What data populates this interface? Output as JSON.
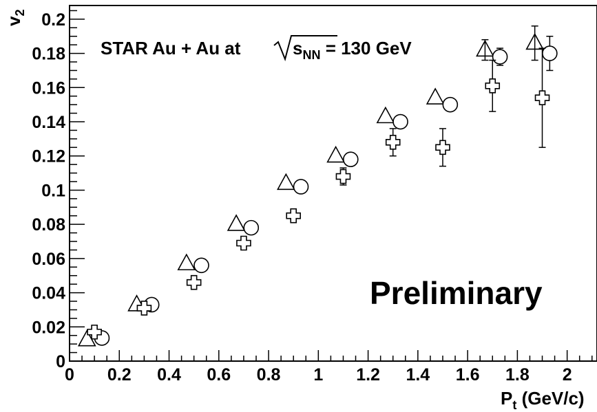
{
  "chart_data": {
    "type": "scatter",
    "title": "",
    "xlabel_main": "P",
    "xlabel_sub": "t",
    "xlabel_rest": " (GeV/c)",
    "ylabel_main": "v",
    "ylabel_sub": "2",
    "annotation_main": "STAR Au + Au at ",
    "annotation_s": "s",
    "annotation_sub": "NN",
    "annotation_rest": " = 130 GeV",
    "watermark": "Preliminary",
    "xlim": [
      0,
      2.12
    ],
    "ylim": [
      0,
      0.208
    ],
    "grid": false,
    "legend": "none",
    "x_ticks": [
      {
        "value": 0,
        "label": "0"
      },
      {
        "value": 0.2,
        "label": "0.2"
      },
      {
        "value": 0.4,
        "label": "0.4"
      },
      {
        "value": 0.6,
        "label": "0.6"
      },
      {
        "value": 0.8,
        "label": "0.8"
      },
      {
        "value": 1.0,
        "label": "1"
      },
      {
        "value": 1.2,
        "label": "1.2"
      },
      {
        "value": 1.4,
        "label": "1.4"
      },
      {
        "value": 1.6,
        "label": "1.6"
      },
      {
        "value": 1.8,
        "label": "1.8"
      },
      {
        "value": 2.0,
        "label": "2"
      }
    ],
    "y_ticks": [
      {
        "value": 0,
        "label": "0"
      },
      {
        "value": 0.02,
        "label": "0.02"
      },
      {
        "value": 0.04,
        "label": "0.04"
      },
      {
        "value": 0.06,
        "label": "0.06"
      },
      {
        "value": 0.08,
        "label": "0.08"
      },
      {
        "value": 0.1,
        "label": "0.1"
      },
      {
        "value": 0.12,
        "label": "0.12"
      },
      {
        "value": 0.14,
        "label": "0.14"
      },
      {
        "value": 0.16,
        "label": "0.16"
      },
      {
        "value": 0.18,
        "label": "0.18"
      },
      {
        "value": 0.2,
        "label": "0.2"
      }
    ],
    "series": [
      {
        "marker": "triangle",
        "points": [
          {
            "x": 0.07,
            "y": 0.0125,
            "err": 0
          },
          {
            "x": 0.27,
            "y": 0.033,
            "err": 0
          },
          {
            "x": 0.47,
            "y": 0.057,
            "err": 0
          },
          {
            "x": 0.67,
            "y": 0.08,
            "err": 0
          },
          {
            "x": 0.87,
            "y": 0.104,
            "err": 0
          },
          {
            "x": 1.07,
            "y": 0.12,
            "err": 0
          },
          {
            "x": 1.27,
            "y": 0.143,
            "err": 0
          },
          {
            "x": 1.47,
            "y": 0.154,
            "err": 0
          },
          {
            "x": 1.67,
            "y": 0.182,
            "err": 0.006
          },
          {
            "x": 1.87,
            "y": 0.186,
            "err": 0.01
          }
        ]
      },
      {
        "marker": "circle",
        "points": [
          {
            "x": 0.13,
            "y": 0.0135,
            "err": 0
          },
          {
            "x": 0.33,
            "y": 0.033,
            "err": 0
          },
          {
            "x": 0.53,
            "y": 0.056,
            "err": 0
          },
          {
            "x": 0.73,
            "y": 0.078,
            "err": 0
          },
          {
            "x": 0.93,
            "y": 0.102,
            "err": 0
          },
          {
            "x": 1.13,
            "y": 0.118,
            "err": 0
          },
          {
            "x": 1.33,
            "y": 0.14,
            "err": 0
          },
          {
            "x": 1.53,
            "y": 0.15,
            "err": 0
          },
          {
            "x": 1.73,
            "y": 0.178,
            "err": 0.005
          },
          {
            "x": 1.93,
            "y": 0.18,
            "err": 0.01
          }
        ]
      },
      {
        "marker": "cross",
        "points": [
          {
            "x": 0.1,
            "y": 0.017,
            "err": 0
          },
          {
            "x": 0.3,
            "y": 0.031,
            "err": 0
          },
          {
            "x": 0.5,
            "y": 0.046,
            "err": 0
          },
          {
            "x": 0.7,
            "y": 0.069,
            "err": 0
          },
          {
            "x": 0.9,
            "y": 0.085,
            "err": 0
          },
          {
            "x": 1.1,
            "y": 0.108,
            "err": 0.005
          },
          {
            "x": 1.3,
            "y": 0.128,
            "err": 0.008
          },
          {
            "x": 1.5,
            "y": 0.125,
            "err": 0.011
          },
          {
            "x": 1.7,
            "y": 0.161,
            "err": 0.015
          },
          {
            "x": 1.9,
            "y": 0.154,
            "err": 0.029
          }
        ]
      }
    ]
  }
}
